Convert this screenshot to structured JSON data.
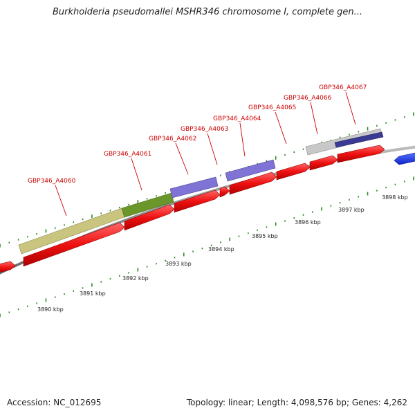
{
  "title": "Burkholderia pseudomallei MSHR346 chromosome I, complete gen...",
  "footer": {
    "accession": "Accession: NC_012695",
    "stats": "Topology: linear; Length: 4,098,576 bp; Genes: 4,262"
  },
  "gene_labels": [
    "GBP346_A4060",
    "GBP346_A4061",
    "GBP346_A4062",
    "GBP346_A4063",
    "GBP346_A4064",
    "GBP346_A4065",
    "GBP346_A4066",
    "GBP346_A4067"
  ],
  "kbp_labels": [
    "3890 kbp",
    "3891 kbp",
    "3892 kbp",
    "3893 kbp",
    "3894 kbp",
    "3895 kbp",
    "3896 kbp",
    "3897 kbp",
    "3898 kbp"
  ],
  "colors": {
    "gene": "#ee1111",
    "gene_reverse": "#1133dd",
    "feature_olive": "#c9c57f",
    "feature_green": "#6b962a",
    "feature_purple": "#7f74d6",
    "feature_gray": "#c8c8c8",
    "feature_navy": "#3a3a95",
    "track": "#8a8a8a",
    "tick": "#2a8a1f",
    "label": "#cc0000"
  }
}
